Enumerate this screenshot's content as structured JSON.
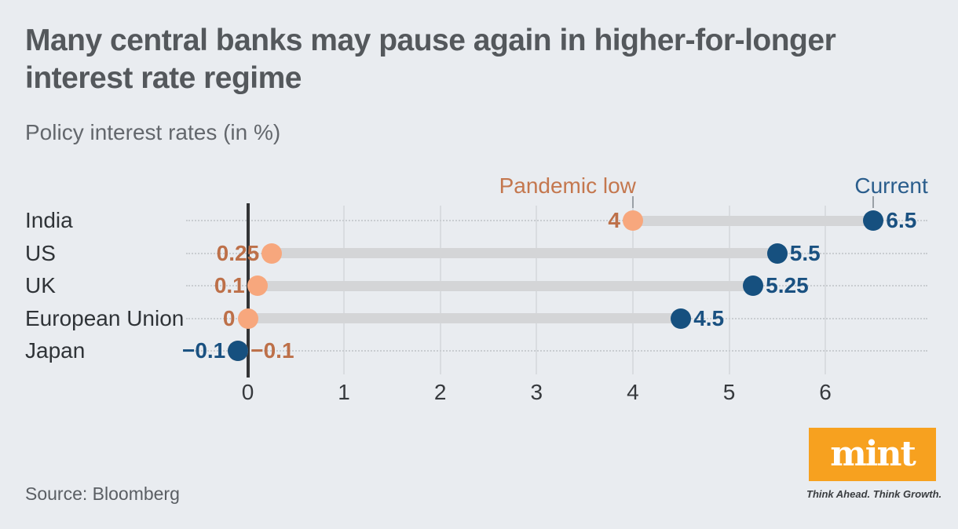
{
  "title": "Many central banks may pause again in higher-for-longer interest rate regime",
  "subtitle": "Policy interest rates (in %)",
  "source": "Source: Bloomberg",
  "logo": {
    "text": "mint",
    "tagline": "Think Ahead. Think Growth."
  },
  "colors": {
    "page-bg": "#e9ecf0",
    "title-text": "#54585c",
    "subtitle-text": "#63676c",
    "row-label": "#2f3337",
    "axis-label": "#36393d",
    "grid-line": "#d9dce0",
    "zero-line": "#333436",
    "leader-dot": "#c9cdd1",
    "bar": "#d4d5d7",
    "legend-tick": "#9aa0a6",
    "pandemic-dot": "#f7a77d",
    "pandemic-text": "#bd7049",
    "current-dot": "#16507f",
    "current-text": "#1a5181",
    "legend-pandemic": "#c4774e",
    "legend-current": "#2a5d8c",
    "mint-orange": "#f7a11f",
    "logo-text": "#ffffff",
    "tagline-text": "#3a3d40",
    "source-text": "#5a5e63"
  },
  "chart_data": {
    "type": "scatter",
    "variant": "dumbbell",
    "title": "Policy interest rates (in %)",
    "categories": [
      "India",
      "US",
      "UK",
      "European Union",
      "Japan"
    ],
    "series": [
      {
        "name": "Pandemic low",
        "values": [
          4,
          0.25,
          0.1,
          0,
          -0.1
        ],
        "labels": [
          "4",
          "0.25",
          "0.1",
          "0",
          "−0.1"
        ],
        "label_sides": [
          "left",
          "left",
          "left",
          "left",
          "right"
        ]
      },
      {
        "name": "Current",
        "values": [
          6.5,
          5.5,
          5.25,
          4.5,
          -0.1
        ],
        "labels": [
          "6.5",
          "5.5",
          "5.25",
          "4.5",
          "−0.1"
        ],
        "label_sides": [
          "right",
          "right",
          "right",
          "right",
          "left"
        ]
      }
    ],
    "xticks": [
      0,
      1,
      2,
      3,
      4,
      5,
      6
    ],
    "xlim": [
      -0.64,
      7.06
    ],
    "grid": true,
    "legend_position": "top",
    "xlabel": "",
    "ylabel": ""
  }
}
